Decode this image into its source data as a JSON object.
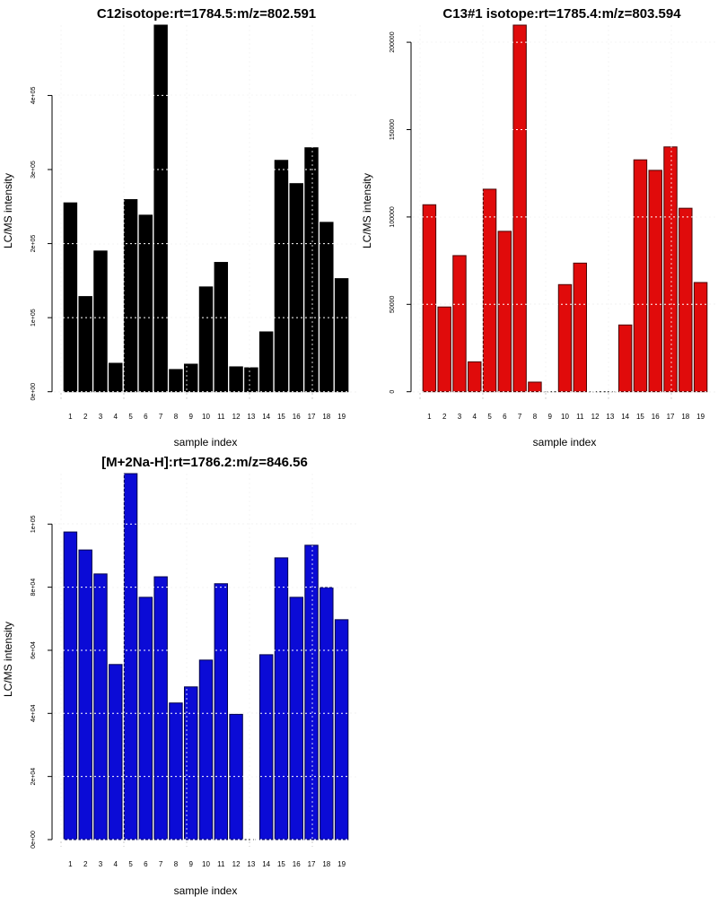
{
  "chart_data": [
    {
      "type": "bar",
      "title": "C12isotope:rt=1784.5:m/z=802.591",
      "xlabel": "sample index",
      "ylabel": "LC/MS intensity",
      "categories": [
        "1",
        "2",
        "3",
        "4",
        "5",
        "6",
        "7",
        "8",
        "9",
        "10",
        "11",
        "12",
        "13",
        "14",
        "15",
        "16",
        "17",
        "18",
        "19"
      ],
      "values": [
        255000,
        128500,
        190000,
        38400,
        259400,
        238400,
        495000,
        30000,
        37200,
        141500,
        174600,
        33600,
        32300,
        80800,
        312400,
        281000,
        329400,
        228700,
        152700
      ],
      "ylim": [
        0,
        495000
      ],
      "yticks": [
        0,
        100000,
        200000,
        300000,
        400000
      ],
      "ytick_labels": [
        "0e+00",
        "1e+05",
        "2e+05",
        "3e+05",
        "4e+05"
      ],
      "color": "#000000",
      "border": "#000000",
      "grid": true
    },
    {
      "type": "bar",
      "title": "C13#1 isotope:rt=1785.4:m/z=803.594",
      "xlabel": "sample index",
      "ylabel": "LC/MS intensity",
      "categories": [
        "1",
        "2",
        "3",
        "4",
        "5",
        "6",
        "7",
        "8",
        "9",
        "10",
        "11",
        "12",
        "13",
        "14",
        "15",
        "16",
        "17",
        "18",
        "19"
      ],
      "values": [
        107000,
        48500,
        77900,
        17100,
        115900,
        91800,
        209800,
        5500,
        0,
        61300,
        73600,
        0,
        0,
        38200,
        132700,
        126700,
        140100,
        105000,
        62500
      ],
      "ylim": [
        0,
        209800
      ],
      "yticks": [
        0,
        50000,
        100000,
        150000,
        200000
      ],
      "ytick_labels": [
        "0",
        "50000",
        "100000",
        "150000",
        "200000"
      ],
      "color": "#e00b0b",
      "border": "#4a0606",
      "grid": true
    },
    {
      "type": "bar",
      "title": "[M+2Na-H]:rt=1786.2:m/z=846.56",
      "xlabel": "sample index",
      "ylabel": "LC/MS intensity",
      "categories": [
        "1",
        "2",
        "3",
        "4",
        "5",
        "6",
        "7",
        "8",
        "9",
        "10",
        "11",
        "12",
        "13",
        "14",
        "15",
        "16",
        "17",
        "18",
        "19"
      ],
      "values": [
        97500,
        91800,
        84200,
        55500,
        116000,
        76800,
        83300,
        43300,
        48400,
        56900,
        81100,
        39700,
        0,
        58600,
        89300,
        76800,
        93300,
        79900,
        69700
      ],
      "ylim": [
        0,
        116000
      ],
      "yticks": [
        0,
        20000,
        40000,
        60000,
        80000,
        100000
      ],
      "ytick_labels": [
        "0e+00",
        "2e+04",
        "4e+04",
        "6e+04",
        "8e+04",
        "1e+05"
      ],
      "color": "#0b0bd6",
      "border": "#03034a",
      "grid": true
    }
  ]
}
